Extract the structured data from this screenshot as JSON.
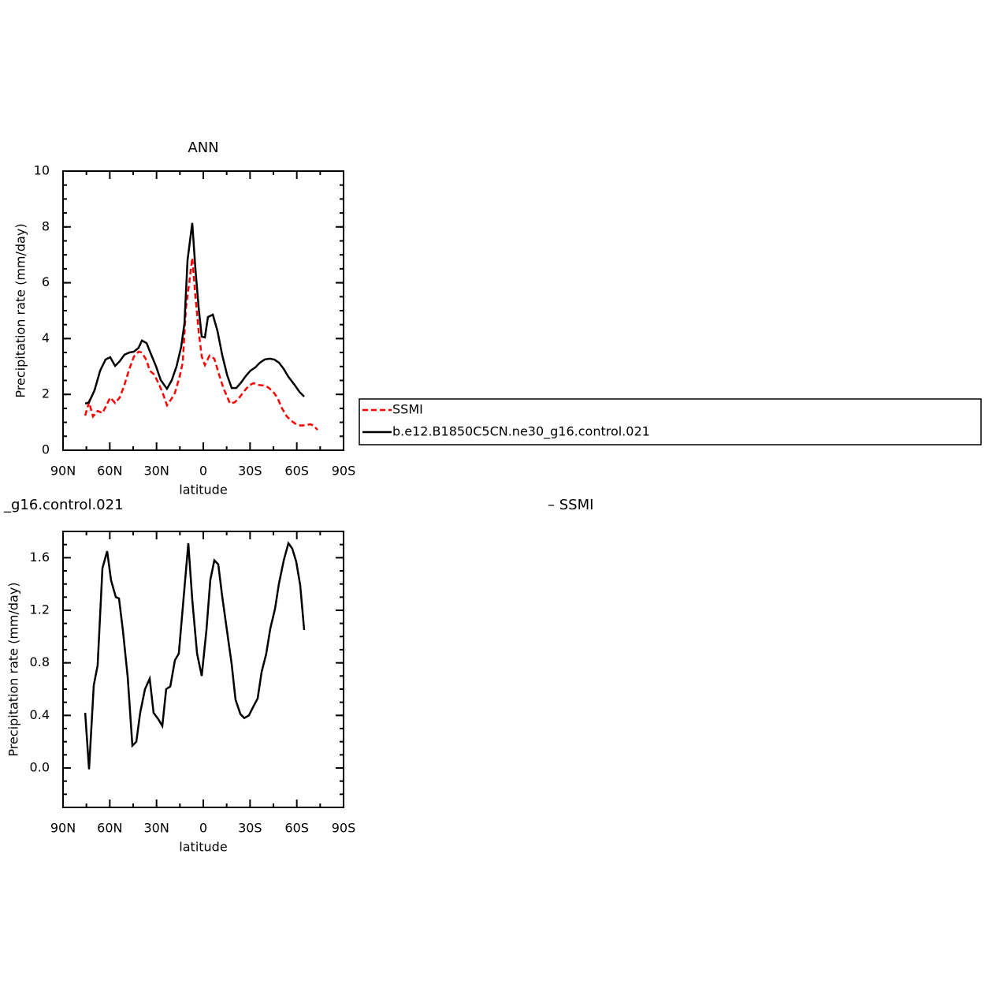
{
  "chart_data": [
    {
      "type": "line",
      "title": "ANN",
      "xlabel": "latitude",
      "ylabel": "Precipitation rate (mm/day)",
      "xlim": [
        90,
        -90
      ],
      "xticks": [
        {
          "value": 90,
          "label": "90N"
        },
        {
          "value": 60,
          "label": "60N"
        },
        {
          "value": 30,
          "label": "30N"
        },
        0,
        {
          "value": -30,
          "label": "30S"
        },
        {
          "value": -60,
          "label": "60S"
        },
        {
          "value": -90,
          "label": "90S"
        }
      ],
      "ylim": [
        0,
        10
      ],
      "yticks": [
        0,
        2,
        4,
        6,
        8,
        10
      ],
      "legend": "right",
      "series": [
        {
          "name": "SSMI",
          "color": "#ff0000",
          "dash": true,
          "x": [
            75.8,
            73.3,
            70.8,
            67.8,
            64.7,
            62.7,
            59.7,
            56.6,
            53.6,
            50.6,
            47.5,
            44.5,
            41.5,
            39.4,
            36.4,
            34.4,
            31.4,
            28.3,
            26.3,
            23.3,
            20.2,
            18.2,
            15.2,
            13.2,
            11.1,
            9.1,
            7.1,
            5.1,
            3.0,
            1.0,
            -1.0,
            -4.0,
            -7.1,
            -10.1,
            -13.1,
            -17.2,
            -20.2,
            -23.2,
            -26.3,
            -29.3,
            -32.3,
            -35.4,
            -38.4,
            -41.4,
            -44.5,
            -47.5,
            -50.5,
            -53.6,
            -56.6,
            -59.6,
            -62.7,
            -65.7,
            -68.7,
            -70.8,
            -73.3
          ],
          "values": [
            1.24,
            1.72,
            1.21,
            1.41,
            1.33,
            1.55,
            1.89,
            1.69,
            1.89,
            2.34,
            2.91,
            3.36,
            3.53,
            3.5,
            3.22,
            2.85,
            2.71,
            2.34,
            2.09,
            1.61,
            1.86,
            2.06,
            2.63,
            3.14,
            5.11,
            5.96,
            6.89,
            5.54,
            4.27,
            3.36,
            3.05,
            3.39,
            3.28,
            2.71,
            2.2,
            1.67,
            1.72,
            1.89,
            2.12,
            2.32,
            2.4,
            2.34,
            2.32,
            2.26,
            2.12,
            1.89,
            1.5,
            1.21,
            1.05,
            0.93,
            0.88,
            0.9,
            0.93,
            0.88,
            0.73
          ]
        },
        {
          "name": "b.e12.B1850C5CN.ne30_g16.control.021",
          "color": "#000000",
          "dash": false,
          "x": [
            75.8,
            73.3,
            69.8,
            66.2,
            62.7,
            59.7,
            56.6,
            53.6,
            50.6,
            47.5,
            44.5,
            41.5,
            39.4,
            36.4,
            33.4,
            30.3,
            27.3,
            23.3,
            20.2,
            17.2,
            14.2,
            12.1,
            10.1,
            7.1,
            5.1,
            3.0,
            1.0,
            -1.0,
            -3.0,
            -6.1,
            -9.1,
            -12.1,
            -15.2,
            -18.2,
            -21.2,
            -24.3,
            -27.3,
            -30.3,
            -33.4,
            -36.4,
            -39.4,
            -42.5,
            -45.5,
            -48.5,
            -51.6,
            -54.6,
            -58.6,
            -61.7,
            -64.7
          ],
          "values": [
            1.67,
            1.72,
            2.15,
            2.85,
            3.25,
            3.33,
            3.02,
            3.19,
            3.42,
            3.5,
            3.53,
            3.67,
            3.93,
            3.84,
            3.42,
            3.0,
            2.51,
            2.2,
            2.51,
            3.0,
            3.7,
            4.55,
            6.81,
            8.14,
            6.53,
            5.11,
            4.07,
            4.04,
            4.77,
            4.86,
            4.27,
            3.42,
            2.71,
            2.23,
            2.23,
            2.43,
            2.66,
            2.85,
            2.97,
            3.14,
            3.25,
            3.28,
            3.25,
            3.14,
            2.91,
            2.63,
            2.34,
            2.09,
            1.92
          ]
        }
      ]
    },
    {
      "type": "line",
      "left_title": "_g16.control.021",
      "right_title": "– SSMI",
      "xlabel": "latitude",
      "ylabel": "Precipitation rate (mm/day)",
      "xlim": [
        90,
        -90
      ],
      "xticks": [
        {
          "value": 90,
          "label": "90N"
        },
        {
          "value": 60,
          "label": "60N"
        },
        {
          "value": 30,
          "label": "30N"
        },
        0,
        {
          "value": -30,
          "label": "30S"
        },
        {
          "value": -60,
          "label": "60S"
        },
        {
          "value": -90,
          "label": "90S"
        }
      ],
      "ylim": [
        -0.3,
        1.8
      ],
      "yticks": [
        {
          "value": 0,
          "label": "0.0"
        },
        {
          "value": 0.4,
          "label": "0.4"
        },
        {
          "value": 0.8,
          "label": "0.8"
        },
        {
          "value": 1.2,
          "label": "1.2"
        },
        {
          "value": 1.6,
          "label": "1.6"
        }
      ],
      "series": [
        {
          "color": "#000000",
          "dash": false,
          "x": [
            75.8,
            73.3,
            70.3,
            67.8,
            64.7,
            61.7,
            59.2,
            56.1,
            54.1,
            51.6,
            48.5,
            45.5,
            43.0,
            40.5,
            37.4,
            34.4,
            31.9,
            28.8,
            26.3,
            23.8,
            21.2,
            18.2,
            15.7,
            12.6,
            9.6,
            7.1,
            4.0,
            1.0,
            -2.0,
            -4.5,
            -7.1,
            -9.6,
            -12.1,
            -15.7,
            -18.2,
            -20.7,
            -23.8,
            -26.3,
            -29.3,
            -31.8,
            -34.9,
            -37.4,
            -40.4,
            -43.0,
            -46.0,
            -48.5,
            -51.6,
            -54.6,
            -57.1,
            -59.6,
            -62.2,
            -64.7
          ],
          "values": [
            0.42,
            -0.01,
            0.63,
            0.78,
            1.52,
            1.65,
            1.43,
            1.3,
            1.29,
            1.05,
            0.69,
            0.17,
            0.2,
            0.42,
            0.6,
            0.68,
            0.42,
            0.37,
            0.32,
            0.6,
            0.62,
            0.82,
            0.87,
            1.3,
            1.71,
            1.28,
            0.87,
            0.7,
            1.05,
            1.43,
            1.58,
            1.55,
            1.31,
            1.0,
            0.79,
            0.52,
            0.41,
            0.38,
            0.4,
            0.46,
            0.53,
            0.73,
            0.87,
            1.06,
            1.21,
            1.4,
            1.58,
            1.71,
            1.67,
            1.57,
            1.39,
            1.05
          ]
        }
      ]
    }
  ]
}
